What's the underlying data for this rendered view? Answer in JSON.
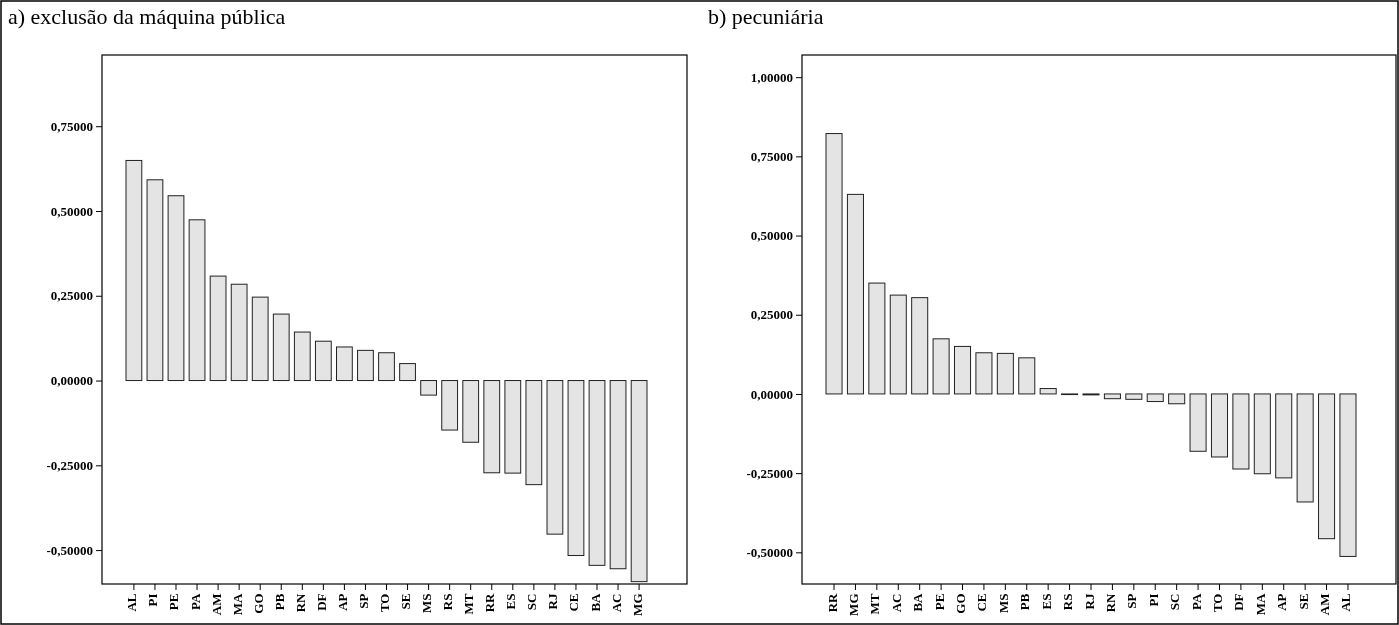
{
  "chart_data": [
    {
      "type": "bar",
      "title": "a) exclusão da máquina pública",
      "categories": [
        "AL",
        "PI",
        "PE",
        "PA",
        "AM",
        "MA",
        "GO",
        "PB",
        "RN",
        "DF",
        "AP",
        "SP",
        "TO",
        "SE",
        "MS",
        "RS",
        "MT",
        "RR",
        "ES",
        "SC",
        "RJ",
        "CE",
        "BA",
        "AC",
        "MG"
      ],
      "values": [
        0.649,
        0.592,
        0.545,
        0.474,
        0.308,
        0.284,
        0.246,
        0.196,
        0.143,
        0.116,
        0.099,
        0.089,
        0.082,
        0.05,
        -0.043,
        -0.146,
        -0.182,
        -0.272,
        -0.273,
        -0.307,
        -0.453,
        -0.516,
        -0.545,
        -0.555,
        -0.593
      ],
      "color": "#e4e4e4",
      "ylim": [
        -0.6,
        0.96
      ],
      "yticks": [
        {
          "value": -0.5,
          "label": "-0,50000"
        },
        {
          "value": -0.25,
          "label": "-0,25000"
        },
        {
          "value": 0,
          "label": "0,00000"
        },
        {
          "value": 0.25,
          "label": "0,25000"
        },
        {
          "value": 0.5,
          "label": "0,50000"
        },
        {
          "value": 0.75,
          "label": "0,75000"
        }
      ],
      "grid": false
    },
    {
      "type": "bar",
      "title": "b) pecuniária",
      "categories": [
        "RR",
        "MG",
        "MT",
        "AC",
        "BA",
        "PE",
        "GO",
        "CE",
        "MS",
        "PB",
        "ES",
        "RS",
        "RJ",
        "RN",
        "SP",
        "PI",
        "SC",
        "PA",
        "TO",
        "DF",
        "MA",
        "AP",
        "SE",
        "AM",
        "AL"
      ],
      "values": [
        0.822,
        0.63,
        0.35,
        0.312,
        0.304,
        0.174,
        0.15,
        0.13,
        0.128,
        0.114,
        0.017,
        -0.002,
        -0.003,
        -0.015,
        -0.017,
        -0.024,
        -0.031,
        -0.181,
        -0.199,
        -0.237,
        -0.252,
        -0.265,
        -0.341,
        -0.457,
        -0.513
      ],
      "color": "#e4e4e4",
      "ylim": [
        -0.6,
        1.07
      ],
      "yticks": [
        {
          "value": -0.5,
          "label": "-0,50000"
        },
        {
          "value": -0.25,
          "label": "-0,25000"
        },
        {
          "value": 0,
          "label": "0,00000"
        },
        {
          "value": 0.25,
          "label": "0,25000"
        },
        {
          "value": 0.5,
          "label": "0,50000"
        },
        {
          "value": 0.75,
          "label": "0,75000"
        },
        {
          "value": 1,
          "label": "1,00000"
        }
      ],
      "grid": false
    }
  ]
}
